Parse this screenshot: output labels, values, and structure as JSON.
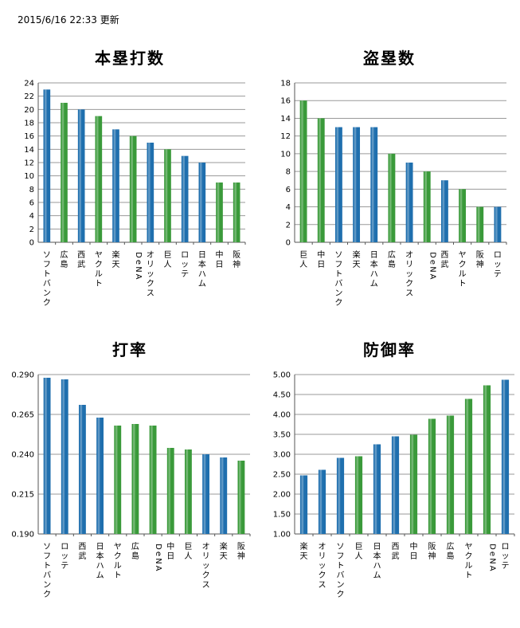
{
  "header": {
    "timestamp": "2015/6/16  22:33 更新"
  },
  "colors": {
    "blue": "#1f6fae",
    "green": "#3a9a3a"
  },
  "chart_data": [
    {
      "type": "bar",
      "title": "本塁打数",
      "categories": [
        "ソフトバンク",
        "広島",
        "西武",
        "ヤクルト",
        "楽天",
        "DeNA",
        "オリックス",
        "巨人",
        "ロッテ",
        "日本ハム",
        "中日",
        "阪神"
      ],
      "values": [
        23,
        21,
        20,
        19,
        17,
        16,
        15,
        14,
        13,
        12,
        9,
        9
      ],
      "league": [
        "pacific",
        "central",
        "pacific",
        "central",
        "pacific",
        "central",
        "pacific",
        "central",
        "pacific",
        "pacific",
        "central",
        "central"
      ],
      "ylim": [
        0,
        24
      ],
      "yticks": [
        "0",
        "2",
        "4",
        "6",
        "8",
        "10",
        "12",
        "14",
        "16",
        "18",
        "20",
        "22",
        "24"
      ],
      "grid": true
    },
    {
      "type": "bar",
      "title": "盗塁数",
      "categories": [
        "巨人",
        "中日",
        "ソフトバンク",
        "楽天",
        "日本ハム",
        "広島",
        "オリックス",
        "DeNA",
        "西武",
        "ヤクルト",
        "阪神",
        "ロッテ"
      ],
      "values": [
        16,
        14,
        13,
        13,
        13,
        10,
        9,
        8,
        7,
        6,
        4,
        4
      ],
      "league": [
        "central",
        "central",
        "pacific",
        "pacific",
        "pacific",
        "central",
        "pacific",
        "central",
        "pacific",
        "central",
        "central",
        "pacific"
      ],
      "ylim": [
        0,
        18
      ],
      "yticks": [
        "0",
        "2",
        "4",
        "6",
        "8",
        "10",
        "12",
        "14",
        "16",
        "18"
      ],
      "grid": true
    },
    {
      "type": "bar",
      "title": "打率",
      "categories": [
        "ソフトバンク",
        "ロッテ",
        "西武",
        "日本ハム",
        "ヤクルト",
        "広島",
        "DeNA",
        "中日",
        "巨人",
        "オリックス",
        "楽天",
        "阪神"
      ],
      "values": [
        0.288,
        0.287,
        0.271,
        0.263,
        0.258,
        0.259,
        0.258,
        0.244,
        0.243,
        0.24,
        0.238,
        0.236
      ],
      "league": [
        "pacific",
        "pacific",
        "pacific",
        "pacific",
        "central",
        "central",
        "central",
        "central",
        "central",
        "pacific",
        "pacific",
        "central"
      ],
      "ylim": [
        0.19,
        0.29
      ],
      "yticks": [
        "0.190",
        "0.215",
        "0.240",
        "0.265",
        "0.290"
      ],
      "grid": true
    },
    {
      "type": "bar",
      "title": "防御率",
      "categories": [
        "楽天",
        "オリックス",
        "ソフトバンク",
        "巨人",
        "日本ハム",
        "西武",
        "中日",
        "阪神",
        "広島",
        "ヤクルト",
        "DeNA",
        "ロッテ"
      ],
      "values": [
        2.47,
        2.61,
        2.91,
        2.95,
        3.25,
        3.45,
        3.49,
        3.89,
        3.97,
        4.39,
        4.73,
        4.87
      ],
      "league": [
        "pacific",
        "pacific",
        "pacific",
        "central",
        "pacific",
        "pacific",
        "central",
        "central",
        "central",
        "central",
        "central",
        "pacific"
      ],
      "ylim": [
        1.0,
        5.0
      ],
      "yticks": [
        "1.00",
        "1.50",
        "2.00",
        "2.50",
        "3.00",
        "3.50",
        "4.00",
        "4.50",
        "5.00"
      ],
      "grid": true
    }
  ]
}
